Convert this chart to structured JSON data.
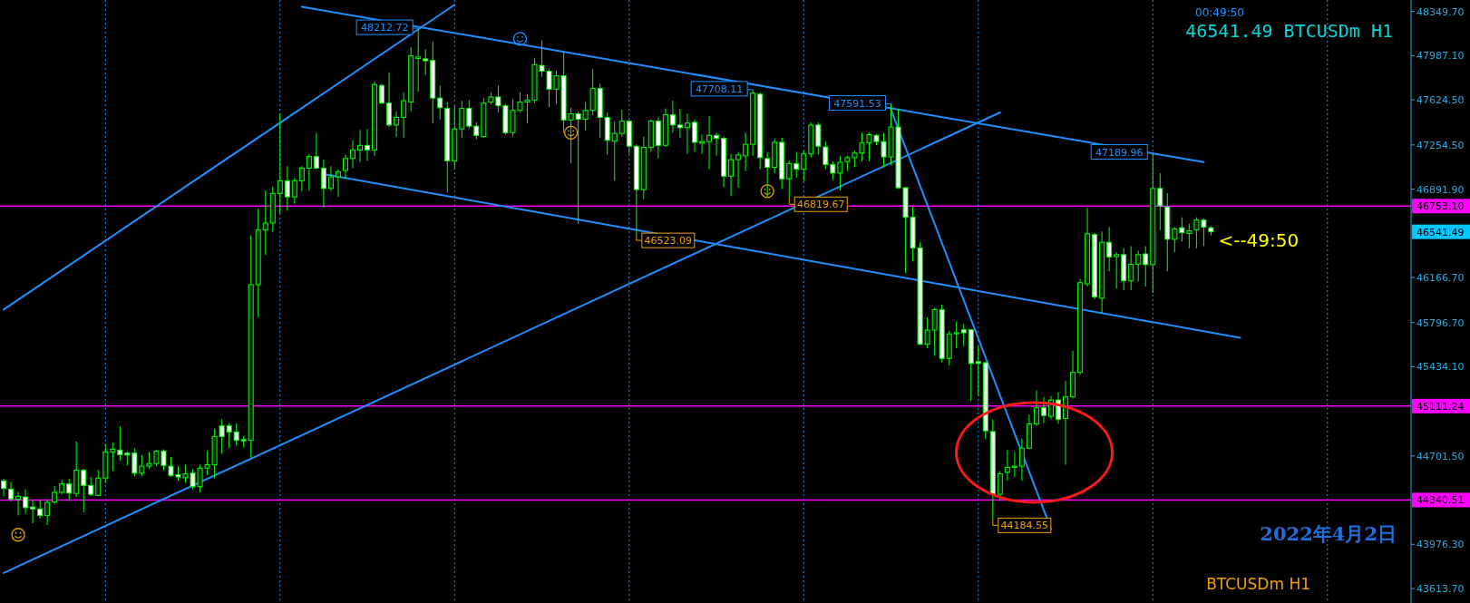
{
  "chart_data": {
    "type": "candlestick",
    "title": "46541.49 BTCUSDm H1",
    "subtitle": "00:49:50",
    "color": "#00ff00",
    "categories": [
      null,
      null,
      null,
      null,
      null,
      null,
      null,
      null,
      null,
      null,
      null,
      null,
      null,
      null,
      null,
      null,
      null,
      null,
      null,
      null,
      null,
      null,
      null,
      null,
      null,
      null,
      null,
      null,
      null,
      null,
      null,
      null,
      null,
      null,
      null,
      null,
      null,
      null,
      null,
      null,
      null,
      null,
      null,
      null,
      null,
      null,
      null,
      null,
      null,
      null,
      null,
      null,
      null,
      null,
      null,
      null,
      null,
      null,
      null,
      null,
      null,
      null,
      null,
      null,
      null,
      null,
      null,
      null,
      null,
      null,
      null,
      null,
      null,
      null,
      null,
      null,
      null,
      null,
      null,
      null,
      null,
      null,
      null,
      null,
      null,
      null,
      null,
      null,
      null,
      null,
      null,
      null,
      null,
      null,
      null,
      null,
      null,
      null,
      null,
      null,
      null,
      null,
      null,
      null,
      null,
      null,
      null,
      null,
      null,
      null,
      null,
      null,
      null,
      null,
      null,
      null,
      null,
      null,
      null,
      null,
      null,
      null,
      null,
      null,
      null,
      null,
      null,
      null,
      null,
      null,
      null,
      null,
      null,
      null,
      null,
      null,
      null,
      null,
      null,
      null,
      null,
      null,
      null,
      null,
      null,
      null,
      null,
      null,
      null,
      null,
      null,
      null,
      null,
      null,
      null,
      null,
      null,
      null,
      null,
      null,
      null,
      null,
      null,
      null,
      null,
      null,
      null,
      null,
      null,
      null,
      null,
      null,
      null,
      null,
      null,
      null,
      null,
      null,
      null,
      null,
      null,
      null,
      null,
      null,
      null,
      null,
      null,
      null,
      null,
      null,
      null,
      null,
      null,
      null
    ],
    "ohlc": [
      [
        44498,
        44514,
        44371,
        44435
      ],
      [
        44428,
        44491,
        44330,
        44349
      ],
      [
        44346,
        44409,
        44214,
        44371
      ],
      [
        44365,
        44428,
        44229,
        44277
      ],
      [
        44283,
        44340,
        44150,
        44267
      ],
      [
        44267,
        44340,
        44188,
        44214
      ],
      [
        44214,
        44340,
        44135,
        44321
      ],
      [
        44324,
        44457,
        44308,
        44403
      ],
      [
        44403,
        44504,
        44387,
        44472
      ],
      [
        44472,
        44514,
        44334,
        44397
      ],
      [
        44394,
        44820,
        44365,
        44586
      ],
      [
        44586,
        44599,
        44239,
        44460
      ],
      [
        44460,
        44529,
        44371,
        44387
      ],
      [
        44378,
        44586,
        44371,
        44520
      ],
      [
        44520,
        44798,
        44482,
        44735
      ],
      [
        44735,
        44813,
        44577,
        44757
      ],
      [
        44750,
        44946,
        44662,
        44712
      ],
      [
        44725,
        44735,
        44624,
        44709
      ],
      [
        44725,
        44766,
        44536,
        44561
      ],
      [
        44561,
        44709,
        44539,
        44618
      ],
      [
        44618,
        44735,
        44599,
        44640
      ],
      [
        44640,
        44750,
        44618,
        44741
      ],
      [
        44741,
        44757,
        44586,
        44624
      ],
      [
        44618,
        44694,
        44529,
        44542
      ],
      [
        44548,
        44618,
        44498,
        44529
      ],
      [
        44523,
        44630,
        44482,
        44555
      ],
      [
        44561,
        44592,
        44428,
        44450
      ],
      [
        44450,
        44630,
        44403,
        44602
      ],
      [
        44602,
        44744,
        44545,
        44630
      ],
      [
        44630,
        44924,
        44520,
        44861
      ],
      [
        44949,
        45003,
        44719,
        44861
      ],
      [
        44949,
        44971,
        44766,
        44899
      ],
      [
        44899,
        44971,
        44788,
        44829
      ],
      [
        44836,
        44867,
        44772,
        44826
      ],
      [
        44829,
        46512,
        44687,
        46108
      ],
      [
        46108,
        46730,
        45840,
        46556
      ],
      [
        46556,
        46881,
        46351,
        46613
      ],
      [
        46613,
        46913,
        46540,
        46856
      ],
      [
        46856,
        47513,
        46692,
        46960
      ],
      [
        46960,
        47080,
        46714,
        46828
      ],
      [
        46828,
        46986,
        46771,
        46960
      ],
      [
        46960,
        47080,
        46872,
        47064
      ],
      [
        47064,
        47181,
        46878,
        47159
      ],
      [
        47159,
        47355,
        47055,
        47064
      ],
      [
        47064,
        47134,
        46739,
        46897
      ],
      [
        46897,
        47080,
        46875,
        46992
      ],
      [
        46992,
        47055,
        46828,
        47033
      ],
      [
        47045,
        47175,
        46976,
        47143
      ],
      [
        47143,
        47292,
        47064,
        47213
      ],
      [
        47213,
        47377,
        47112,
        47251
      ],
      [
        47251,
        47386,
        47124,
        47213
      ],
      [
        47213,
        47775,
        47165,
        47750
      ],
      [
        47743,
        47756,
        47592,
        47598
      ],
      [
        47598,
        47851,
        47402,
        47418
      ],
      [
        47418,
        47529,
        47323,
        47481
      ],
      [
        47481,
        47686,
        47314,
        47617
      ],
      [
        47607,
        48059,
        47529,
        47986
      ],
      [
        47964,
        48212.72,
        47693,
        47977
      ],
      [
        47961,
        48040,
        47828,
        47945
      ],
      [
        47948,
        48103,
        47434,
        47639
      ],
      [
        47639,
        47743,
        47465,
        47560
      ],
      [
        47554,
        47607,
        46866,
        47124
      ],
      [
        47124,
        47576,
        47055,
        47386
      ],
      [
        47386,
        47617,
        47314,
        47554
      ],
      [
        47554,
        47623,
        47386,
        47409
      ],
      [
        47409,
        47440,
        47301,
        47333
      ],
      [
        47323,
        47639,
        47314,
        47598
      ],
      [
        47607,
        47686,
        47585,
        47648
      ],
      [
        47648,
        47743,
        47522,
        47576
      ],
      [
        47576,
        47592,
        47339,
        47355
      ],
      [
        47355,
        47630,
        47323,
        47538
      ],
      [
        47538,
        47686,
        47522,
        47607
      ],
      [
        47607,
        47671,
        47434,
        47623
      ],
      [
        47623,
        47970,
        47598,
        47914
      ],
      [
        47907,
        48113,
        47813,
        47860
      ],
      [
        47860,
        47876,
        47566,
        47712
      ],
      [
        47712,
        47866,
        47592,
        47822
      ],
      [
        47822,
        48018,
        47355,
        47459
      ],
      [
        47459,
        47560,
        47102,
        47510
      ],
      [
        47510,
        47529,
        46607,
        47465
      ],
      [
        47465,
        47607,
        47371,
        47538
      ],
      [
        47538,
        47876,
        47497,
        47718
      ],
      [
        47718,
        47756,
        47314,
        47481
      ],
      [
        47481,
        47522,
        47175,
        47292
      ],
      [
        47285,
        47450,
        46960,
        47349
      ],
      [
        47349,
        47544,
        47323,
        47450
      ],
      [
        47450,
        47459,
        47181,
        47244
      ],
      [
        47244,
        47260,
        46523.09,
        46888
      ],
      [
        46888,
        47323,
        46809,
        47235
      ],
      [
        47235,
        47465,
        47197,
        47450
      ],
      [
        47450,
        47481,
        47143,
        47251
      ],
      [
        47251,
        47554,
        47238,
        47503
      ],
      [
        47503,
        47617,
        47355,
        47418
      ],
      [
        47418,
        47551,
        47314,
        47396
      ],
      [
        47396,
        47513,
        47181,
        47434
      ],
      [
        47440,
        47465,
        47197,
        47276
      ],
      [
        47270,
        47339,
        47181,
        47282
      ],
      [
        47282,
        47491,
        47055,
        47333
      ],
      [
        47333,
        47355,
        47165,
        47308
      ],
      [
        47308,
        47323,
        46907,
        46998
      ],
      [
        46998,
        47181,
        46834,
        47134
      ],
      [
        47134,
        47197,
        46903,
        47172
      ],
      [
        47165,
        47355,
        47039,
        47260
      ],
      [
        47260,
        47708.11,
        47165,
        47680
      ],
      [
        47671,
        47686,
        47055,
        47150
      ],
      [
        47143,
        47197,
        46828,
        47071
      ],
      [
        47071,
        47301,
        47023,
        47276
      ],
      [
        47276,
        47314,
        46891,
        46976
      ],
      [
        46976,
        47124,
        46819.67,
        47102
      ],
      [
        47102,
        47197,
        46986,
        47055
      ],
      [
        47055,
        47207,
        46960,
        47181
      ],
      [
        47181,
        47440,
        47150,
        47418
      ],
      [
        47418,
        47440,
        47175,
        47244
      ],
      [
        47238,
        47282,
        47055,
        47093
      ],
      [
        47093,
        47118,
        46967,
        47023
      ],
      [
        47023,
        47165,
        46881,
        47112
      ],
      [
        47118,
        47165,
        47039,
        47150
      ],
      [
        47150,
        47207,
        47071,
        47188
      ],
      [
        47188,
        47355,
        47118,
        47270
      ],
      [
        47270,
        47355,
        47124,
        47339
      ],
      [
        47333,
        47345,
        47251,
        47282
      ],
      [
        47282,
        47355,
        47071,
        47156
      ],
      [
        47156,
        47591.53,
        47087,
        47402
      ],
      [
        47402,
        47554,
        46891,
        46903
      ],
      [
        46903,
        46910,
        46203,
        46660
      ],
      [
        46660,
        46746,
        46297,
        46408
      ],
      [
        46408,
        46455,
        45609,
        45619
      ],
      [
        45619,
        45840,
        45587,
        45735
      ],
      [
        45735,
        45918,
        45524,
        45903
      ],
      [
        45903,
        45944,
        45470,
        45502
      ],
      [
        45502,
        45729,
        45445,
        45704
      ],
      [
        45704,
        45808,
        45587,
        45713
      ],
      [
        45738,
        45786,
        45603,
        45713
      ],
      [
        45738,
        45745,
        45154,
        45461
      ],
      [
        45476,
        45603,
        45192,
        45461
      ],
      [
        45467,
        45476,
        44839,
        44908
      ],
      [
        44902,
        45003,
        44184.55,
        44387
      ],
      [
        44387,
        44577,
        44340,
        44555
      ],
      [
        44567,
        44750,
        44498,
        44608
      ],
      [
        44608,
        44735,
        44529,
        44618
      ],
      [
        44618,
        44845,
        44498,
        44766
      ],
      [
        44766,
        45041,
        44757,
        44965
      ],
      [
        44965,
        45240,
        44946,
        45098
      ],
      [
        45098,
        45186,
        44971,
        45034
      ],
      [
        45028,
        45192,
        45003,
        45161
      ],
      [
        45161,
        45224,
        44965,
        45003
      ],
      [
        45009,
        45319,
        44630,
        45186
      ],
      [
        45186,
        45565,
        45173,
        45388
      ],
      [
        45388,
        46155,
        45366,
        46124
      ],
      [
        46114,
        46739,
        46092,
        46525
      ],
      [
        46518,
        46534,
        45988,
        46007
      ],
      [
        45997,
        46544,
        45871,
        46455
      ],
      [
        46455,
        46581,
        46218,
        46335
      ],
      [
        46338,
        46376,
        46076,
        46354
      ],
      [
        46354,
        46408,
        46061,
        46139
      ],
      [
        46139,
        46424,
        46061,
        46275
      ],
      [
        46275,
        46386,
        46133,
        46354
      ],
      [
        46360,
        46424,
        46092,
        46272
      ],
      [
        46272,
        47189.96,
        46038,
        46897
      ],
      [
        46897,
        47023,
        46556,
        46755
      ],
      [
        46746,
        46859,
        46218,
        46480
      ],
      [
        46480,
        46581,
        46376,
        46566
      ],
      [
        46575,
        46660,
        46461,
        46534
      ],
      [
        46528,
        46607,
        46408,
        46550
      ],
      [
        46556,
        46660,
        46408,
        46638
      ],
      [
        46638,
        46651,
        46424,
        46581
      ],
      [
        46575,
        46588,
        46512,
        46541.49
      ],
      null,
      null,
      null,
      null,
      null,
      null,
      null,
      null,
      null,
      null,
      null,
      null,
      null,
      null,
      null,
      null,
      null,
      null,
      null,
      null,
      null,
      null,
      null,
      null,
      null,
      null,
      null
    ],
    "series": [
      {
        "type": "line",
        "color": "#1e90ff",
        "values": [
          45903,
          null,
          null,
          null,
          null,
          null,
          null,
          null,
          null,
          null,
          null,
          null,
          null,
          null,
          null,
          null,
          null,
          null,
          null,
          null,
          null,
          null,
          null,
          null,
          null,
          null,
          null,
          null,
          null,
          null,
          null,
          null,
          null,
          null,
          null,
          null,
          null,
          null,
          null,
          null,
          null,
          null,
          null,
          null,
          null,
          null,
          null,
          null,
          null,
          null,
          null,
          null,
          null,
          null,
          null,
          null,
          null,
          null,
          null,
          null,
          null,
          null,
          48405,
          null,
          null,
          null,
          null,
          null,
          null,
          null,
          null,
          null,
          null,
          null,
          null,
          null,
          null,
          null,
          null,
          null,
          null,
          null,
          null,
          null,
          null,
          null,
          null,
          null,
          null,
          null,
          null,
          null,
          null,
          null,
          null,
          null,
          null,
          null,
          null,
          null,
          null,
          null,
          null,
          null,
          null,
          null,
          null,
          null,
          null,
          null,
          null,
          null,
          null,
          null,
          null,
          null,
          null,
          null,
          null,
          null,
          null,
          null,
          null,
          null,
          null,
          null,
          null,
          null,
          null,
          null,
          null,
          null,
          null,
          null,
          null,
          null,
          null,
          null,
          null,
          null,
          null,
          null,
          null,
          null,
          null,
          null,
          null,
          null,
          null,
          null,
          null,
          null,
          null,
          null,
          null,
          null,
          null,
          null,
          null,
          null,
          null,
          null,
          null,
          null,
          null,
          null,
          null,
          null,
          null,
          null,
          null,
          null,
          null,
          null,
          null,
          null,
          null,
          null,
          null,
          null,
          null,
          null,
          null,
          null,
          null,
          null,
          null,
          null,
          null,
          null,
          null,
          null,
          null,
          null
        ]
      },
      {
        "type": "line",
        "color": "#1e90ff",
        "values": [
          43741,
          null,
          null,
          null,
          null,
          null,
          null,
          null,
          null,
          null,
          null,
          null,
          null,
          null,
          null,
          null,
          null,
          null,
          null,
          null,
          null,
          null,
          null,
          null,
          null,
          null,
          null,
          null,
          null,
          null,
          null,
          null,
          null,
          null,
          null,
          null,
          null,
          null,
          null,
          null,
          null,
          null,
          null,
          null,
          null,
          null,
          null,
          null,
          null,
          null,
          null,
          null,
          null,
          null,
          null,
          null,
          null,
          null,
          null,
          null,
          null,
          null,
          null,
          null,
          null,
          null,
          null,
          null,
          null,
          null,
          null,
          null,
          null,
          null,
          null,
          null,
          null,
          null,
          null,
          null,
          null,
          null,
          null,
          null,
          null,
          null,
          null,
          null,
          null,
          null,
          null,
          null,
          null,
          null,
          null,
          null,
          null,
          null,
          null,
          null,
          null,
          null,
          null,
          null,
          null,
          null,
          null,
          null,
          null,
          null,
          null,
          null,
          null,
          null,
          null,
          null,
          null,
          null,
          null,
          null,
          null,
          null,
          null,
          null,
          null,
          null,
          null,
          null,
          null,
          null,
          null,
          null,
          null,
          null,
          null,
          null,
          null,
          47521,
          null,
          null,
          null,
          null,
          null,
          null,
          null,
          null,
          null,
          null,
          null,
          null,
          null,
          null,
          null,
          null,
          null,
          null,
          null,
          null,
          null,
          null,
          null,
          null,
          null,
          null,
          null,
          null,
          null,
          null,
          null,
          null,
          null,
          null,
          null,
          null,
          null,
          null,
          null,
          null,
          null,
          null,
          null,
          null,
          null,
          null,
          null,
          null,
          null,
          null,
          null,
          null,
          null,
          null,
          null,
          null
        ]
      },
      {
        "type": "line",
        "color": "#1e90ff",
        "values": [
          null,
          null,
          null,
          null,
          null,
          null,
          null,
          null,
          null,
          null,
          null,
          null,
          null,
          null,
          null,
          null,
          null,
          null,
          null,
          null,
          null,
          null,
          null,
          null,
          null,
          null,
          null,
          null,
          null,
          null,
          null,
          null,
          null,
          null,
          null,
          null,
          null,
          null,
          null,
          null,
          null,
          48389,
          null,
          null,
          null,
          null,
          null,
          null,
          null,
          null,
          null,
          null,
          null,
          null,
          null,
          null,
          null,
          null,
          null,
          null,
          null,
          null,
          null,
          null,
          null,
          null,
          null,
          null,
          null,
          null,
          null,
          null,
          null,
          null,
          null,
          null,
          null,
          null,
          null,
          null,
          null,
          null,
          null,
          null,
          null,
          null,
          null,
          null,
          null,
          null,
          null,
          null,
          null,
          null,
          null,
          null,
          null,
          null,
          null,
          null,
          null,
          null,
          null,
          null,
          null,
          null,
          null,
          null,
          null,
          null,
          null,
          null,
          null,
          null,
          null,
          null,
          null,
          null,
          null,
          null,
          null,
          null,
          null,
          null,
          null,
          null,
          null,
          null,
          null,
          null,
          null,
          null,
          null,
          null,
          null,
          null,
          null,
          null,
          null,
          null,
          null,
          null,
          null,
          null,
          null,
          null,
          null,
          null,
          null,
          null,
          null,
          null,
          null,
          null,
          null,
          null,
          null,
          null,
          null,
          null,
          null,
          null,
          null,
          null,
          null,
          47113,
          null,
          null,
          null,
          null,
          null,
          null,
          null,
          null,
          null,
          null,
          null,
          null,
          null,
          null,
          null,
          null,
          null,
          null,
          null,
          null,
          null,
          null,
          null,
          null,
          null,
          null,
          null,
          null
        ]
      },
      {
        "type": "line",
        "color": "#1e90ff",
        "values": [
          null,
          null,
          null,
          null,
          null,
          null,
          null,
          null,
          null,
          null,
          null,
          null,
          null,
          null,
          null,
          null,
          null,
          null,
          null,
          null,
          null,
          null,
          null,
          null,
          null,
          null,
          null,
          null,
          null,
          null,
          null,
          null,
          null,
          null,
          null,
          null,
          null,
          null,
          null,
          null,
          null,
          null,
          null,
          null,
          47015,
          null,
          null,
          null,
          null,
          null,
          null,
          null,
          null,
          null,
          null,
          null,
          null,
          null,
          null,
          null,
          null,
          null,
          null,
          null,
          null,
          null,
          null,
          null,
          null,
          null,
          null,
          null,
          null,
          null,
          null,
          null,
          null,
          null,
          null,
          null,
          null,
          null,
          null,
          null,
          null,
          null,
          null,
          null,
          null,
          null,
          null,
          null,
          null,
          null,
          null,
          null,
          null,
          null,
          null,
          null,
          null,
          null,
          null,
          null,
          null,
          null,
          null,
          null,
          null,
          null,
          null,
          null,
          null,
          null,
          null,
          null,
          null,
          null,
          null,
          null,
          null,
          null,
          null,
          null,
          null,
          null,
          null,
          null,
          null,
          null,
          null,
          null,
          null,
          null,
          null,
          null,
          null,
          null,
          null,
          null,
          null,
          null,
          null,
          null,
          null,
          null,
          null,
          null,
          null,
          null,
          null,
          null,
          null,
          null,
          null,
          null,
          null,
          null,
          null,
          null,
          null,
          null,
          null,
          null,
          null,
          null,
          null,
          null,
          null,
          null,
          45672,
          null,
          null,
          null,
          null,
          null,
          null,
          null,
          null,
          null,
          null,
          null,
          null,
          null,
          null,
          null,
          null,
          null,
          null,
          null,
          null,
          null,
          null,
          null
        ]
      },
      {
        "type": "line",
        "color": "#1e90ff",
        "values": [
          null,
          null,
          null,
          null,
          null,
          null,
          null,
          null,
          null,
          null,
          null,
          null,
          null,
          null,
          null,
          null,
          null,
          null,
          null,
          null,
          null,
          null,
          null,
          null,
          null,
          null,
          null,
          null,
          null,
          null,
          null,
          null,
          null,
          null,
          null,
          null,
          null,
          null,
          null,
          null,
          null,
          null,
          null,
          null,
          null,
          null,
          null,
          null,
          null,
          null,
          null,
          null,
          null,
          null,
          null,
          null,
          null,
          null,
          null,
          null,
          null,
          null,
          null,
          null,
          null,
          null,
          null,
          null,
          null,
          null,
          null,
          null,
          null,
          null,
          null,
          null,
          null,
          null,
          null,
          null,
          null,
          null,
          null,
          null,
          null,
          null,
          null,
          null,
          null,
          null,
          null,
          null,
          null,
          null,
          null,
          null,
          null,
          null,
          null,
          null,
          null,
          null,
          null,
          null,
          null,
          null,
          null,
          null,
          null,
          null,
          null,
          null,
          null,
          null,
          null,
          null,
          null,
          null,
          null,
          null,
          null,
          null,
          47544,
          null,
          null,
          null,
          null,
          null,
          null,
          null,
          null,
          null,
          null,
          null,
          null,
          null,
          null,
          null,
          null,
          null,
          null,
          null,
          null,
          null,
          44103,
          null,
          null,
          null,
          null,
          null,
          null,
          null,
          null,
          null,
          null,
          null,
          null,
          null,
          null,
          null,
          null,
          null,
          null,
          null,
          null,
          null,
          null,
          null,
          null,
          null,
          null,
          null,
          null,
          null,
          null,
          null,
          null,
          null,
          null,
          null,
          null,
          null,
          null,
          null,
          null,
          null,
          null,
          null,
          null,
          null,
          null,
          null,
          null,
          null
        ]
      }
    ],
    "ylim": [
      43495,
      48444
    ],
    "yticks": [
      {
        "value": 43613.7,
        "label": "43613.70"
      },
      {
        "value": 43976.3,
        "label": "43976.30"
      },
      {
        "value": 44701.5,
        "label": "44701.50"
      },
      {
        "value": 45434.1,
        "label": "45434.10"
      },
      {
        "value": 45796.7,
        "label": "45796.70"
      },
      {
        "value": 46166.7,
        "label": "46166.70"
      },
      {
        "value": 46891.9,
        "label": "46891.90"
      },
      {
        "value": 47254.5,
        "label": "47254.50"
      },
      {
        "value": 47624.5,
        "label": "47624.50"
      },
      {
        "value": 47987.1,
        "label": "47987.10"
      },
      {
        "value": 48349.7,
        "label": "48349.70"
      }
    ],
    "grid": "x",
    "ref_lines": [
      {
        "axis": "y",
        "value": 46753.1,
        "label": "46753.10",
        "color": "#ff00ff"
      },
      {
        "axis": "y",
        "value": 45111.24,
        "label": "45111.24",
        "color": "#ff00ff"
      },
      {
        "axis": "y",
        "value": 44340.51,
        "label": "44340.51",
        "color": "#ff00ff"
      }
    ],
    "annotations": [
      {
        "text": "47591.53",
        "y": 47591.53
      },
      {
        "text": "47189.96",
        "y": 47189.96
      },
      {
        "text": "46523.09",
        "y": 46523.09
      },
      {
        "text": "46819.67",
        "y": 46819.67
      },
      "48212.72",
      "47708.11",
      "44184.55",
      "46541.49",
      "<--49:50",
      "2022年4月2日",
      "BTCUSDm H1"
    ]
  }
}
